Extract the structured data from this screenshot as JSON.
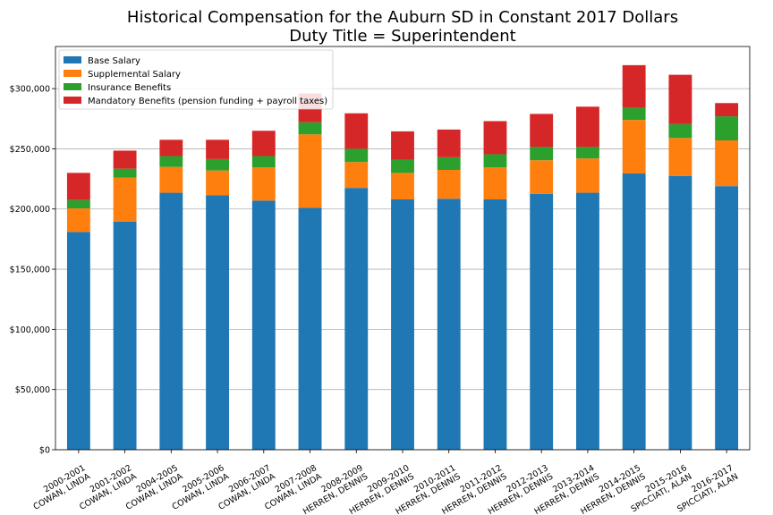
{
  "chart_data": {
    "type": "bar",
    "stacked": true,
    "title_lines": [
      "Historical Compensation for the Auburn SD in Constant 2017 Dollars",
      "Duty Title = Superintendent"
    ],
    "categories": [
      [
        "2000-2001",
        "COWAN, LINDA"
      ],
      [
        "2001-2002",
        "COWAN, LINDA"
      ],
      [
        "2004-2005",
        "COWAN, LINDA"
      ],
      [
        "2005-2006",
        "COWAN, LINDA"
      ],
      [
        "2006-2007",
        "COWAN, LINDA"
      ],
      [
        "2007-2008",
        "COWAN, LINDA"
      ],
      [
        "2008-2009",
        "HERREN, DENNIS"
      ],
      [
        "2009-2010",
        "HERREN, DENNIS"
      ],
      [
        "2010-2011",
        "HERREN, DENNIS"
      ],
      [
        "2011-2012",
        "HERREN, DENNIS"
      ],
      [
        "2012-2013",
        "HERREN, DENNIS"
      ],
      [
        "2013-2014",
        "HERREN, DENNIS"
      ],
      [
        "2014-2015",
        "HERREN, DENNIS"
      ],
      [
        "2015-2016",
        "SPICCIATI, ALAN"
      ],
      [
        "2016-2017",
        "SPICCIATI, ALAN"
      ]
    ],
    "series": [
      {
        "name": "Base Salary",
        "color": "#1f77b4",
        "values": [
          181000,
          189500,
          213500,
          211500,
          207000,
          201000,
          217500,
          208000,
          208500,
          208000,
          212500,
          213500,
          229500,
          227500,
          219000
        ]
      },
      {
        "name": "Supplemental Salary",
        "color": "#ff7f0e",
        "values": [
          19500,
          36500,
          21500,
          20500,
          27500,
          61000,
          21500,
          22000,
          24000,
          26500,
          28000,
          28500,
          44500,
          31500,
          38000
        ]
      },
      {
        "name": "Insurance Benefits",
        "color": "#2ca02c",
        "values": [
          7000,
          7500,
          9000,
          9500,
          9500,
          10000,
          11000,
          11000,
          10500,
          11000,
          11000,
          9500,
          10000,
          11500,
          20000
        ]
      },
      {
        "name": "Mandatory Benefits (pension funding + payroll taxes)",
        "color": "#d62728",
        "values": [
          22500,
          15000,
          13500,
          16000,
          21000,
          24000,
          29500,
          23500,
          23000,
          27500,
          27500,
          33500,
          35500,
          41000,
          11000
        ]
      }
    ],
    "ylim": [
      0,
      335000
    ],
    "yticks": [
      0,
      50000,
      100000,
      150000,
      200000,
      250000,
      300000
    ],
    "ytick_labels": [
      "$0",
      "$50,000",
      "$100,000",
      "$150,000",
      "$200,000",
      "$250,000",
      "$300,000"
    ],
    "grid": "horizontal",
    "legend_position": "top-left",
    "xlabel": "",
    "ylabel": ""
  }
}
